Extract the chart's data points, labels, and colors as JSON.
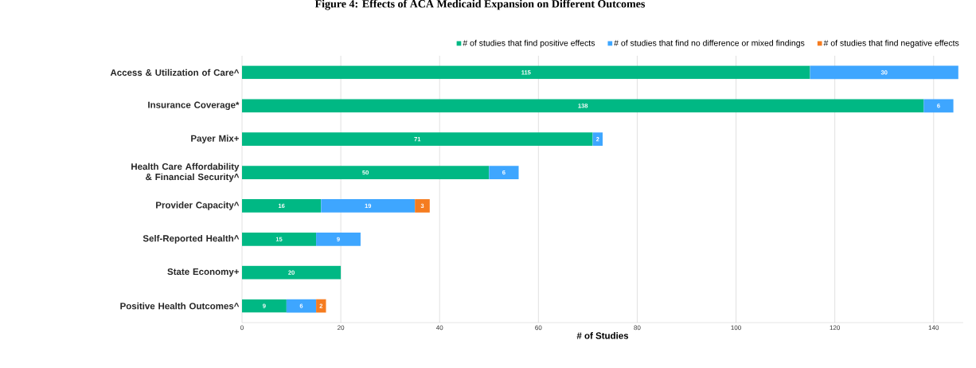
{
  "chart_data": {
    "type": "bar",
    "orientation": "horizontal",
    "stacked": true,
    "title": "Figure 4: Effects of ACA Medicaid Expansion on Different Outcomes",
    "xlabel": "# of Studies",
    "categories": [
      "Access & Utilization of Care^",
      "Insurance Coverage*",
      "Payer Mix+",
      "Health Care Affordability & Financial Security^",
      "Provider Capacity^",
      "Self-Reported Health^",
      "State Economy+",
      "Positive Health Outcomes^"
    ],
    "series": [
      {
        "name": "# of studies that find positive effects",
        "color": "#00b884",
        "values": [
          115,
          138,
          71,
          50,
          16,
          15,
          20,
          9
        ]
      },
      {
        "name": "# of studies that find no difference or mixed findings",
        "color": "#3ea6ff",
        "values": [
          30,
          6,
          2,
          6,
          19,
          9,
          null,
          6
        ]
      },
      {
        "name": "# of studies that find negative effects",
        "color": "#f57c20",
        "values": [
          null,
          null,
          null,
          null,
          3,
          null,
          null,
          2
        ]
      }
    ],
    "xlim": [
      0,
      146
    ],
    "xticks": [
      0,
      20,
      40,
      60,
      80,
      100,
      120,
      140
    ],
    "grid": "x",
    "legend": "top",
    "data_labels": true
  }
}
